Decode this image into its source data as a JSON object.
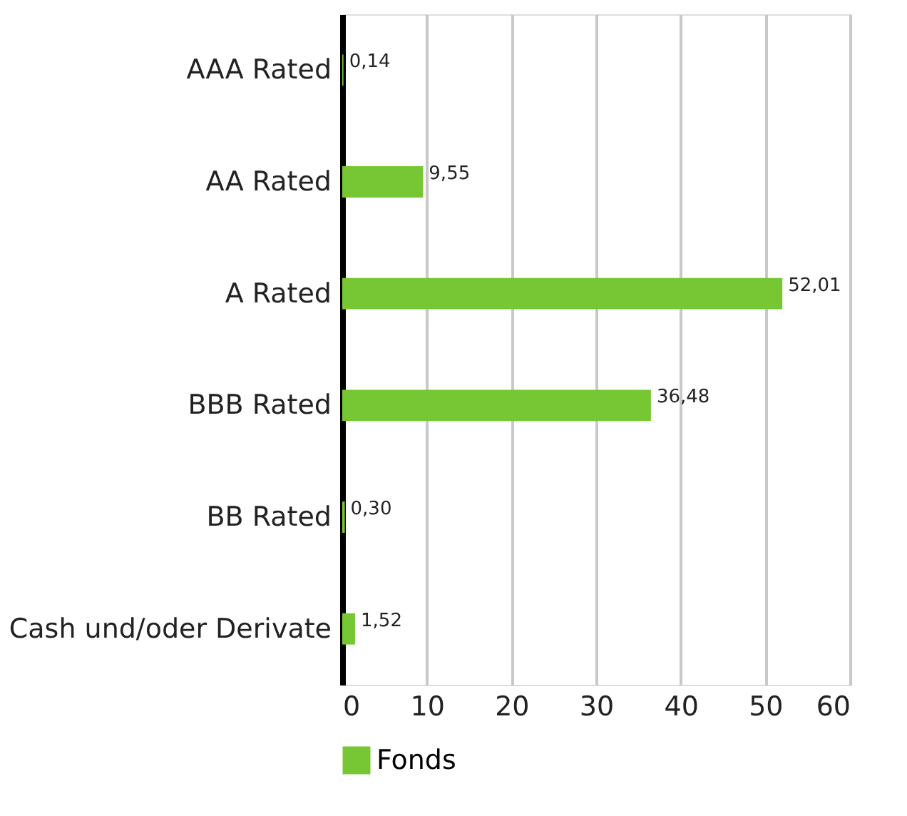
{
  "chart_data": {
    "type": "bar",
    "orientation": "horizontal",
    "categories": [
      "AAA Rated",
      "AA Rated",
      "A Rated",
      "BBB Rated",
      "BB Rated",
      "Cash und/oder Derivate"
    ],
    "series": [
      {
        "name": "Fonds",
        "color": "#76c733",
        "values": [
          0.14,
          9.55,
          52.01,
          36.48,
          0.3,
          1.52
        ],
        "value_labels": [
          "0,14",
          "9,55",
          "52,01",
          "36,48",
          "0,30",
          "1,52"
        ]
      }
    ],
    "xlim": [
      0,
      60
    ],
    "xticks": [
      0,
      10,
      20,
      30,
      40,
      50,
      60
    ],
    "grid": "x",
    "legend": "bottom"
  }
}
